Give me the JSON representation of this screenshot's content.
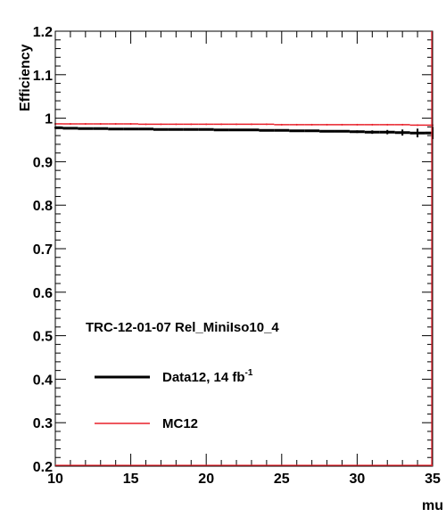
{
  "chart_data": {
    "type": "line",
    "title": "",
    "xlabel": "mu",
    "ylabel": "Efficiency",
    "xlim": [
      10,
      35
    ],
    "ylim": [
      0.2,
      1.2
    ],
    "x_ticks": [
      "10",
      "15",
      "20",
      "25",
      "30",
      "35"
    ],
    "y_ticks": [
      "0.2",
      "0.3",
      "0.4",
      "0.5",
      "0.6",
      "0.7",
      "0.8",
      "0.9",
      "1",
      "1.1",
      "1.2"
    ],
    "annotation": "TRC-12-01-07 Rel_MiniIso10_4",
    "legend_placement": "lower-left",
    "grid": false,
    "series": [
      {
        "name": "Data12, 14 fb",
        "name_superscript": "-1",
        "color": "#000000",
        "x": [
          10,
          11,
          12,
          13,
          14,
          15,
          16,
          17,
          18,
          19,
          20,
          21,
          22,
          23,
          24,
          25,
          26,
          27,
          28,
          29,
          30,
          31,
          32,
          33,
          34,
          35
        ],
        "y": [
          0.978,
          0.977,
          0.976,
          0.976,
          0.975,
          0.975,
          0.975,
          0.974,
          0.974,
          0.974,
          0.974,
          0.973,
          0.973,
          0.973,
          0.972,
          0.972,
          0.971,
          0.971,
          0.97,
          0.97,
          0.969,
          0.968,
          0.968,
          0.967,
          0.966,
          0.966
        ],
        "yerr": [
          0.002,
          0.001,
          0.001,
          0.001,
          0.001,
          0.001,
          0.001,
          0.001,
          0.001,
          0.001,
          0.001,
          0.001,
          0.001,
          0.001,
          0.001,
          0.001,
          0.001,
          0.001,
          0.002,
          0.002,
          0.003,
          0.004,
          0.005,
          0.007,
          0.01,
          0.014
        ]
      },
      {
        "name": "MC12",
        "color": "#e8202a",
        "x": [
          10,
          11,
          12,
          13,
          14,
          15,
          16,
          17,
          18,
          19,
          20,
          21,
          22,
          23,
          24,
          25,
          26,
          27,
          28,
          29,
          30,
          31,
          32,
          33,
          34,
          35
        ],
        "y": [
          0.987,
          0.987,
          0.987,
          0.987,
          0.987,
          0.987,
          0.986,
          0.986,
          0.986,
          0.986,
          0.986,
          0.986,
          0.986,
          0.986,
          0.986,
          0.985,
          0.985,
          0.985,
          0.985,
          0.985,
          0.985,
          0.985,
          0.985,
          0.985,
          0.984,
          0.984
        ]
      }
    ]
  }
}
